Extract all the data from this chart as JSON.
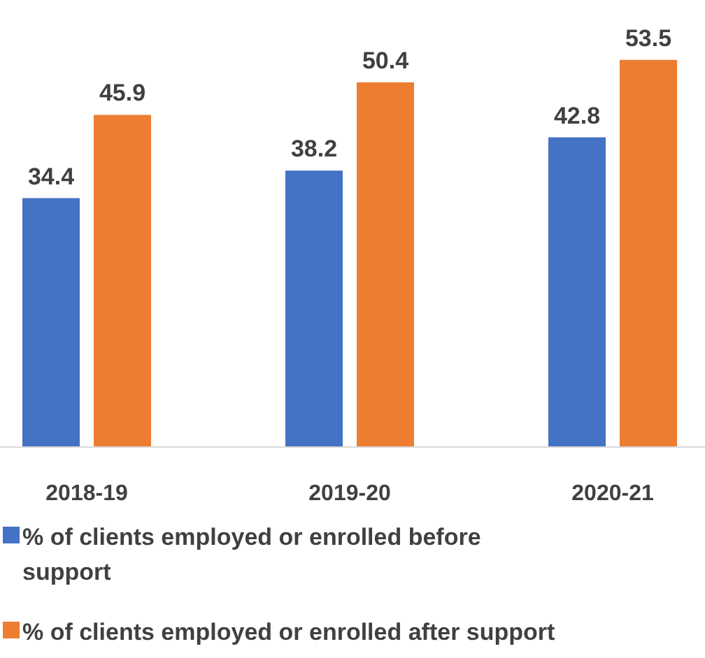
{
  "chart_data": {
    "type": "bar",
    "categories": [
      "2018-19",
      "2019-20",
      "2020-21"
    ],
    "series": [
      {
        "name": "% of clients employed or enrolled before support",
        "color": "#4472c4",
        "values": [
          34.4,
          38.2,
          42.8
        ]
      },
      {
        "name": "% of clients employed or enrolled after support",
        "color": "#ed7d31",
        "values": [
          45.9,
          50.4,
          53.5
        ]
      }
    ],
    "data_labels": true,
    "legend": "bottom"
  }
}
